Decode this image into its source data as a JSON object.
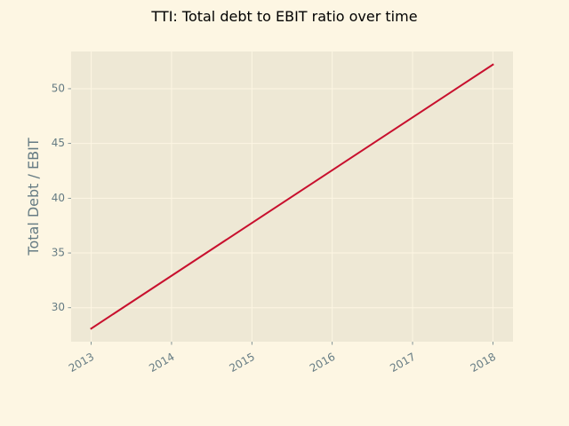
{
  "chart_data": {
    "type": "line",
    "title": "TTI: Total debt to EBIT ratio over time",
    "xlabel": "",
    "ylabel": "Total Debt / EBIT",
    "x": [
      2013,
      2018
    ],
    "x_ticks": [
      "2013",
      "2014",
      "2015",
      "2016",
      "2017",
      "2018"
    ],
    "y_ticks": [
      30,
      35,
      40,
      45,
      50
    ],
    "xlim": [
      2012.75,
      2018.25
    ],
    "ylim": [
      26.9,
      53.4
    ],
    "grid": true,
    "series": [
      {
        "values": [
          28.1,
          52.2
        ]
      }
    ],
    "colors": {
      "background": "#fdf6e3",
      "plot_area": "#eee8d5",
      "line": "#c8102e",
      "grid": "#fdf6e3",
      "tick_text": "#657b83"
    }
  }
}
